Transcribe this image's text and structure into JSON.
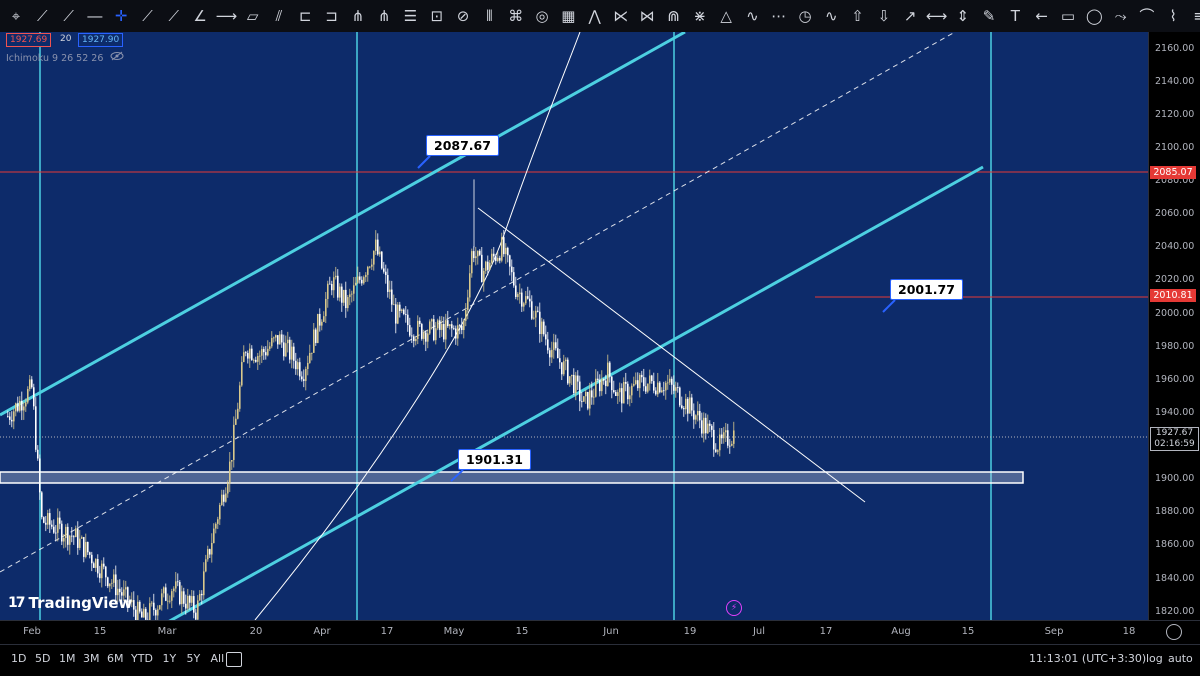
{
  "toolbar": {
    "tools": [
      "cursor-tool",
      "trend-line-tool",
      "ray-tool",
      "horizontal-line-tool",
      "crosshair-tool",
      "info-line-tool",
      "extended-line-tool",
      "trend-angle-tool",
      "horizontal-ray-tool",
      "parallel-channel-tool",
      "regression-tool",
      "flat-top-bottom-tool",
      "disjoint-channel-tool",
      "pitchfork-tool",
      "schiff-pitchfork-tool",
      "fib-retracement-tool",
      "fib-extension-tool",
      "fib-channel-tool",
      "fib-time-zone-tool",
      "fib-speed-fan-tool",
      "fib-circles-tool",
      "gann-box-tool",
      "gann-fan-tool",
      "xabcd-pattern-tool",
      "cypher-pattern-tool",
      "head-shoulders-tool",
      "abcd-pattern-tool",
      "triangle-pattern-tool",
      "elliott-wave-tool",
      "cyclic-lines-tool",
      "time-cycles-tool",
      "sine-line-tool",
      "long-position-tool",
      "short-position-tool",
      "forecast-tool",
      "date-range-tool",
      "price-range-tool",
      "brush-tool",
      "text-tool",
      "arrow-tool",
      "rectangle-tool",
      "ellipse-tool",
      "path-tool",
      "curve-tool",
      "polyline-tool",
      "more-tools"
    ],
    "glyphs": [
      "⌖",
      "⟋",
      "⟋",
      "―",
      "✛",
      "⟋",
      "⟋",
      "∠",
      "⟶",
      "▱",
      "⫽",
      "⊏",
      "⊐",
      "⋔",
      "⋔",
      "☰",
      "⊡",
      "⊘",
      "⦀",
      "⌘",
      "◎",
      "▦",
      "⋀",
      "⋉",
      "⋈",
      "⋒",
      "⋇",
      "△",
      "∿",
      "⋯",
      "◷",
      "∿",
      "⇧",
      "⇩",
      "↗",
      "⟷",
      "⇕",
      "✎",
      "T",
      "←",
      "▭",
      "◯",
      "⤳",
      "⌒",
      "⌇",
      "≡"
    ]
  },
  "legend": {
    "box_sell": "1927.69",
    "box_mid": "20",
    "box_buy": "1927.90",
    "indicator": "Ichimoku 9 26 52 26",
    "eye_icon": "eye-icon"
  },
  "price_axis": {
    "labels": [
      "2160.00",
      "2140.00",
      "2120.00",
      "2100.00",
      "2080.00",
      "2060.00",
      "2040.00",
      "2020.00",
      "2000.00",
      "1980.00",
      "1960.00",
      "1940.00",
      "1900.00",
      "1880.00",
      "1860.00",
      "1840.00",
      "1820.00"
    ],
    "tag_upper": "2085.07",
    "tag_lower": "2010.81",
    "current_price": "1927.67",
    "countdown": "02:16:59"
  },
  "time_axis": {
    "labels": [
      "Feb",
      "15",
      "Mar",
      "20",
      "Apr",
      "17",
      "May",
      "15",
      "Jun",
      "19",
      "Jul",
      "17",
      "Aug",
      "15",
      "Sep",
      "18"
    ]
  },
  "callouts": {
    "top": "2087.67",
    "mid": "2001.77",
    "low": "1901.31"
  },
  "watermark": "TradingView",
  "bottom_bar": {
    "ranges": [
      "1D",
      "5D",
      "1M",
      "3M",
      "6M",
      "YTD",
      "1Y",
      "5Y",
      "All"
    ],
    "clock": "11:13:01 (UTC+3:30)",
    "log_label": "log",
    "auto_label": "auto"
  },
  "colors": {
    "chart_bg": "#0d2b6a",
    "channel": "#4dd0e1",
    "red_level": "#e53935",
    "candle_up": "#d9c98c",
    "candle_down": "#ffffff"
  },
  "chart_data": {
    "type": "candlestick",
    "y_range": [
      1815,
      2170
    ],
    "instrument_hint": "gold",
    "levels": [
      2085.07,
      2010.81
    ],
    "current": 1927.67,
    "support_zone": [
      1901,
      1907
    ],
    "close_path": [
      {
        "date": "2023-01-27",
        "close": 1938
      },
      {
        "date": "2023-02-01",
        "close": 1955
      },
      {
        "date": "2023-02-03",
        "close": 1875
      },
      {
        "date": "2023-02-10",
        "close": 1865
      },
      {
        "date": "2023-02-17",
        "close": 1840
      },
      {
        "date": "2023-02-24",
        "close": 1815
      },
      {
        "date": "2023-03-02",
        "close": 1835
      },
      {
        "date": "2023-03-07",
        "close": 1820
      },
      {
        "date": "2023-03-10",
        "close": 1862
      },
      {
        "date": "2023-03-14",
        "close": 1910
      },
      {
        "date": "2023-03-17",
        "close": 1980
      },
      {
        "date": "2023-03-20",
        "close": 1975
      },
      {
        "date": "2023-03-24",
        "close": 1985
      },
      {
        "date": "2023-03-29",
        "close": 1965
      },
      {
        "date": "2023-04-04",
        "close": 2020
      },
      {
        "date": "2023-04-07",
        "close": 2005
      },
      {
        "date": "2023-04-13",
        "close": 2040
      },
      {
        "date": "2023-04-17",
        "close": 2000
      },
      {
        "date": "2023-04-21",
        "close": 1990
      },
      {
        "date": "2023-04-27",
        "close": 1990
      },
      {
        "date": "2023-05-01",
        "close": 1990
      },
      {
        "date": "2023-05-03",
        "close": 2040
      },
      {
        "date": "2023-05-05",
        "close": 2025
      },
      {
        "date": "2023-05-09",
        "close": 2040
      },
      {
        "date": "2023-05-12",
        "close": 2015
      },
      {
        "date": "2023-05-15",
        "close": 2005
      },
      {
        "date": "2023-05-19",
        "close": 1980
      },
      {
        "date": "2023-05-24",
        "close": 1958
      },
      {
        "date": "2023-05-26",
        "close": 1945
      },
      {
        "date": "2023-05-31",
        "close": 1965
      },
      {
        "date": "2023-06-02",
        "close": 1950
      },
      {
        "date": "2023-06-07",
        "close": 1958
      },
      {
        "date": "2023-06-12",
        "close": 1958
      },
      {
        "date": "2023-06-15",
        "close": 1950
      },
      {
        "date": "2023-06-20",
        "close": 1932
      },
      {
        "date": "2023-06-23",
        "close": 1920
      },
      {
        "date": "2023-06-26",
        "close": 1928
      }
    ]
  }
}
